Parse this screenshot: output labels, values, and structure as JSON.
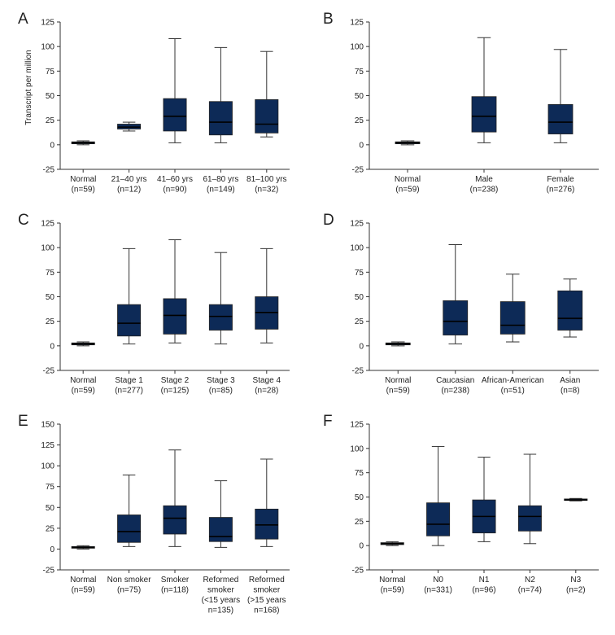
{
  "box_fill_color": "#0d2a57",
  "chart_data": [
    {
      "type": "boxplot",
      "panel_label": "A",
      "ylabel": "Transcript per million",
      "ylim": [
        -25,
        125
      ],
      "yticks": [
        -25,
        0,
        25,
        50,
        75,
        100,
        125
      ],
      "categories": [
        {
          "label": [
            "Normal",
            "(n=59)"
          ],
          "min": 0,
          "q1": 1,
          "median": 2,
          "q3": 3,
          "max": 4
        },
        {
          "label": [
            "21–40 yrs",
            "(n=12)"
          ],
          "min": 14,
          "q1": 16,
          "median": 18,
          "q3": 21,
          "max": 23
        },
        {
          "label": [
            "41–60 yrs",
            "(n=90)"
          ],
          "min": 2,
          "q1": 14,
          "median": 29,
          "q3": 47,
          "max": 108
        },
        {
          "label": [
            "61–80 yrs",
            "(n=149)"
          ],
          "min": 2,
          "q1": 10,
          "median": 23,
          "q3": 44,
          "max": 99
        },
        {
          "label": [
            "81–100 yrs",
            "(n=32)"
          ],
          "min": 8,
          "q1": 12,
          "median": 21,
          "q3": 46,
          "max": 95
        }
      ]
    },
    {
      "type": "boxplot",
      "panel_label": "B",
      "ylabel": "",
      "ylim": [
        -25,
        125
      ],
      "yticks": [
        -25,
        0,
        25,
        50,
        75,
        100,
        125
      ],
      "categories": [
        {
          "label": [
            "Normal",
            "(n=59)"
          ],
          "min": 0,
          "q1": 1,
          "median": 2,
          "q3": 3,
          "max": 4
        },
        {
          "label": [
            "Male",
            "(n=238)"
          ],
          "min": 2,
          "q1": 13,
          "median": 29,
          "q3": 49,
          "max": 109
        },
        {
          "label": [
            "Female",
            "(n=276)"
          ],
          "min": 2,
          "q1": 11,
          "median": 23,
          "q3": 41,
          "max": 97
        }
      ]
    },
    {
      "type": "boxplot",
      "panel_label": "C",
      "ylabel": "",
      "ylim": [
        -25,
        125
      ],
      "yticks": [
        -25,
        0,
        25,
        50,
        75,
        100,
        125
      ],
      "categories": [
        {
          "label": [
            "Normal",
            "(n=59)"
          ],
          "min": 0,
          "q1": 1,
          "median": 2,
          "q3": 3,
          "max": 4
        },
        {
          "label": [
            "Stage 1",
            "(n=277)"
          ],
          "min": 2,
          "q1": 10,
          "median": 23,
          "q3": 42,
          "max": 99
        },
        {
          "label": [
            "Stage 2",
            "(n=125)"
          ],
          "min": 3,
          "q1": 12,
          "median": 31,
          "q3": 48,
          "max": 108
        },
        {
          "label": [
            "Stage 3",
            "(n=85)"
          ],
          "min": 2,
          "q1": 16,
          "median": 30,
          "q3": 42,
          "max": 95
        },
        {
          "label": [
            "Stage 4",
            "(n=28)"
          ],
          "min": 3,
          "q1": 17,
          "median": 34,
          "q3": 50,
          "max": 99
        }
      ]
    },
    {
      "type": "boxplot",
      "panel_label": "D",
      "ylabel": "",
      "ylim": [
        -25,
        125
      ],
      "yticks": [
        -25,
        0,
        25,
        50,
        75,
        100,
        125
      ],
      "categories": [
        {
          "label": [
            "Normal",
            "(n=59)"
          ],
          "min": 0,
          "q1": 1,
          "median": 2,
          "q3": 3,
          "max": 4
        },
        {
          "label": [
            "Caucasian",
            "(n=238)"
          ],
          "min": 2,
          "q1": 11,
          "median": 25,
          "q3": 46,
          "max": 103
        },
        {
          "label": [
            "African-American",
            "(n=51)"
          ],
          "min": 4,
          "q1": 12,
          "median": 21,
          "q3": 45,
          "max": 73
        },
        {
          "label": [
            "Asian",
            "(n=8)"
          ],
          "min": 9,
          "q1": 16,
          "median": 28,
          "q3": 56,
          "max": 68
        }
      ]
    },
    {
      "type": "boxplot",
      "panel_label": "E",
      "ylabel": "",
      "ylim": [
        -25,
        150
      ],
      "yticks": [
        -25,
        0,
        25,
        50,
        75,
        100,
        125,
        150
      ],
      "categories": [
        {
          "label": [
            "Normal",
            "(n=59)"
          ],
          "min": 0,
          "q1": 1,
          "median": 2,
          "q3": 3,
          "max": 4
        },
        {
          "label": [
            "Non smoker",
            "(n=75)"
          ],
          "min": 3,
          "q1": 8,
          "median": 21,
          "q3": 41,
          "max": 89
        },
        {
          "label": [
            "Smoker",
            "(n=118)"
          ],
          "min": 3,
          "q1": 18,
          "median": 37,
          "q3": 52,
          "max": 119
        },
        {
          "label": [
            "Reformed",
            "smoker",
            "(<15 years",
            "n=135)"
          ],
          "min": 2,
          "q1": 9,
          "median": 15,
          "q3": 38,
          "max": 82
        },
        {
          "label": [
            "Reformed",
            "smoker",
            "(>15 years",
            "n=168)"
          ],
          "min": 3,
          "q1": 12,
          "median": 29,
          "q3": 48,
          "max": 108
        }
      ]
    },
    {
      "type": "boxplot",
      "panel_label": "F",
      "ylabel": "",
      "ylim": [
        -25,
        125
      ],
      "yticks": [
        -25,
        0,
        25,
        50,
        75,
        100,
        125
      ],
      "categories": [
        {
          "label": [
            "Normal",
            "(n=59)"
          ],
          "min": 0,
          "q1": 1,
          "median": 2,
          "q3": 3,
          "max": 4
        },
        {
          "label": [
            "N0",
            "(n=331)"
          ],
          "min": 0,
          "q1": 10,
          "median": 22,
          "q3": 44,
          "max": 102
        },
        {
          "label": [
            "N1",
            "(n=96)"
          ],
          "min": 4,
          "q1": 13,
          "median": 30,
          "q3": 47,
          "max": 91
        },
        {
          "label": [
            "N2",
            "(n=74)"
          ],
          "min": 2,
          "q1": 15,
          "median": 30,
          "q3": 41,
          "max": 94
        },
        {
          "label": [
            "N3",
            "(n=2)"
          ],
          "min": 46,
          "q1": 46.5,
          "median": 47,
          "q3": 48,
          "max": 48.5
        }
      ]
    }
  ]
}
